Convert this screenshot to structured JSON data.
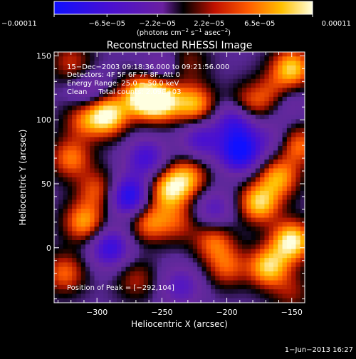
{
  "chart_data": {
    "type": "heatmap",
    "title": "Reconstructed RHESSI Image",
    "xlabel": "Heliocentric X (arcsec)",
    "ylabel": "Heliocentric Y (arcsec)",
    "xlim": [
      -333,
      -140
    ],
    "ylim": [
      -43,
      153
    ],
    "xticks": [
      -300,
      -250,
      -200,
      -150
    ],
    "xtick_labels": [
      "−300",
      "−250",
      "−200",
      "−150"
    ],
    "yticks": [
      0,
      50,
      100,
      150
    ],
    "ytick_labels": [
      "0",
      "50",
      "100",
      "150"
    ],
    "colorbar": {
      "range": [
        -0.00011,
        0.00011
      ],
      "tick_values": [
        -0.00011,
        -6.5e-05,
        -2.2e-05,
        2.2e-05,
        6.5e-05,
        0.00011
      ],
      "tick_labels": [
        "−0.00011",
        "−6.5e−05",
        "−2.2e−05",
        "2.2e−05",
        "6.5e−05",
        "0.00011"
      ],
      "units_prefix": "(photons cm",
      "units_exp1": "−2",
      "units_mid": " s",
      "units_exp2": "−1",
      "units_mid2": " asec",
      "units_exp3": "−2",
      "units_suffix": ")"
    },
    "annotations": [
      "15−Dec−2003 09:18:36.000 to 09:21:56.000",
      "Detectors: 4F 5F 6F 7F 8F, Att 0",
      "Energy Range: 25.0 − 50.0 keV",
      "Clean     Total counts: 2.09E+03"
    ],
    "peak_text": "Position of Peak = [−292,104]",
    "blobs": [
      {
        "x": -265,
        "y": 118,
        "v": 1.0
      },
      {
        "x": -292,
        "y": 104,
        "v": 1.0
      },
      {
        "x": -250,
        "y": 115,
        "v": 0.9
      },
      {
        "x": -225,
        "y": 112,
        "v": 0.75
      },
      {
        "x": -185,
        "y": 110,
        "v": 0.6
      },
      {
        "x": -150,
        "y": 140,
        "v": 0.85
      },
      {
        "x": -165,
        "y": 120,
        "v": 0.5
      },
      {
        "x": -310,
        "y": 100,
        "v": 0.5
      },
      {
        "x": -320,
        "y": 70,
        "v": 0.6
      },
      {
        "x": -310,
        "y": 20,
        "v": 0.7
      },
      {
        "x": -300,
        "y": 45,
        "v": 0.5
      },
      {
        "x": -325,
        "y": -20,
        "v": 0.55
      },
      {
        "x": -260,
        "y": 20,
        "v": 0.6
      },
      {
        "x": -245,
        "y": 45,
        "v": 0.8
      },
      {
        "x": -230,
        "y": 55,
        "v": 0.65
      },
      {
        "x": -238,
        "y": 20,
        "v": 0.4
      },
      {
        "x": -210,
        "y": 5,
        "v": 0.55
      },
      {
        "x": -200,
        "y": -15,
        "v": 0.5
      },
      {
        "x": -175,
        "y": 35,
        "v": 0.85
      },
      {
        "x": -160,
        "y": 55,
        "v": 0.7
      },
      {
        "x": -150,
        "y": 5,
        "v": 1.0
      },
      {
        "x": -168,
        "y": -15,
        "v": 0.85
      },
      {
        "x": -145,
        "y": 80,
        "v": 0.6
      },
      {
        "x": -320,
        "y": 145,
        "v": 0.4
      },
      {
        "x": -230,
        "y": 145,
        "v": 0.3
      },
      {
        "x": -150,
        "y": -35,
        "v": 0.3
      },
      {
        "x": -270,
        "y": -25,
        "v": 0.35
      },
      {
        "x": -190,
        "y": 75,
        "v": -1.0
      },
      {
        "x": -192,
        "y": 100,
        "v": -0.8
      },
      {
        "x": -275,
        "y": 40,
        "v": -0.9
      },
      {
        "x": -290,
        "y": 0,
        "v": -0.7
      },
      {
        "x": -305,
        "y": 120,
        "v": -0.4
      },
      {
        "x": -262,
        "y": 70,
        "v": -0.6
      },
      {
        "x": -220,
        "y": 85,
        "v": -0.55
      },
      {
        "x": -235,
        "y": -30,
        "v": -0.45
      },
      {
        "x": -210,
        "y": 30,
        "v": -0.45
      },
      {
        "x": -165,
        "y": 85,
        "v": -0.3
      },
      {
        "x": -155,
        "y": 115,
        "v": -0.35
      },
      {
        "x": -250,
        "y": 140,
        "v": -0.3
      }
    ]
  },
  "footer": {
    "timestamp": "1−Jun−2013 16:27"
  }
}
